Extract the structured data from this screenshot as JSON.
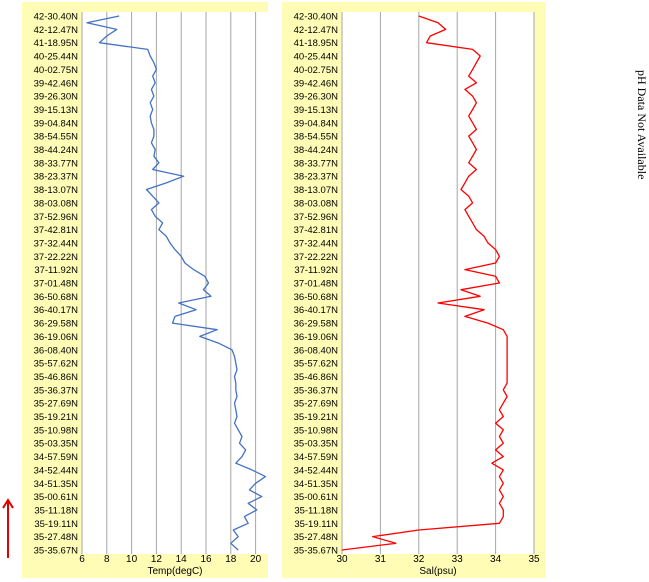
{
  "side_note": "pH Data Not Available",
  "chart_data": [
    {
      "type": "line",
      "xlabel": "Temp(degC)",
      "ylabel": "",
      "xlim": [
        6,
        21
      ],
      "xticks": [
        6,
        8,
        10,
        12,
        14,
        16,
        18,
        20
      ],
      "grid": true,
      "line_color": "#4472c4",
      "background": "#fffdb5",
      "categories": [
        "42-30.40N",
        "42-12.47N",
        "41-18.95N",
        "40-25.44N",
        "40-02.75N",
        "39-42.46N",
        "39-26.30N",
        "39-15.13N",
        "39-04.84N",
        "38-54.55N",
        "38-44.24N",
        "38-33.77N",
        "38-23.37N",
        "38-13.07N",
        "38-03.08N",
        "37-52.96N",
        "37-42.81N",
        "37-32.44N",
        "37-22.22N",
        "37-11.92N",
        "37-01.48N",
        "36-50.68N",
        "36-40.17N",
        "36-29.58N",
        "36-19.06N",
        "36-08.40N",
        "35-57.62N",
        "35-46.86N",
        "35-36.37N",
        "35-27.69N",
        "35-19.21N",
        "35-10.98N",
        "35-03.35N",
        "34-57.59N",
        "34-52.44N",
        "34-51.35N",
        "35-00.61N",
        "35-11.18N",
        "35-19.11N",
        "35-27.48N",
        "35-35.67N"
      ],
      "series": [
        {
          "y": [
            0,
            0.5,
            1,
            1.5,
            2,
            2.5,
            3,
            3.5,
            4,
            4.5,
            5,
            5.5,
            6,
            6.5,
            7,
            7.5,
            8,
            8.5,
            9,
            9.5,
            10,
            10.5,
            11,
            11.5,
            12,
            12.5,
            13,
            13.5,
            14,
            14.5,
            15,
            15.5,
            16,
            16.5,
            17,
            17.5,
            18,
            18.5,
            19,
            19.5,
            20,
            20.5,
            21,
            21.5,
            22,
            22.5,
            23,
            23.5,
            24,
            24.5,
            25,
            25.5,
            26,
            26.5,
            27,
            27.5,
            28,
            28.5,
            29,
            29.5,
            30,
            30.5,
            31,
            31.5,
            32,
            32.5,
            33,
            33.5,
            34,
            34.5,
            35,
            35.5,
            36,
            36.5,
            37,
            37.5,
            38,
            38.5,
            39,
            39.5,
            40
          ],
          "x": [
            9.0,
            6.4,
            8.8,
            8.0,
            7.4,
            11.3,
            11.5,
            11.8,
            12.0,
            11.7,
            11.9,
            11.6,
            11.8,
            11.5,
            11.7,
            11.5,
            11.6,
            11.8,
            11.8,
            11.6,
            11.9,
            11.8,
            12.2,
            11.7,
            14.2,
            12.8,
            11.2,
            11.7,
            12.2,
            11.6,
            11.9,
            12.5,
            12.2,
            12.8,
            13.1,
            13.5,
            14.0,
            14.3,
            15.0,
            15.9,
            16.2,
            15.8,
            16.4,
            13.8,
            15.2,
            13.5,
            13.3,
            16.9,
            15.5,
            17.0,
            18.1,
            18.3,
            18.4,
            18.5,
            18.3,
            18.4,
            18.4,
            18.5,
            18.3,
            18.4,
            18.5,
            18.3,
            18.6,
            18.9,
            18.7,
            19.2,
            18.9,
            18.4,
            19.7,
            20.8,
            20.0,
            19.5,
            20.5,
            19.4,
            20.1,
            19.1,
            19.4,
            18.2,
            18.6,
            18.0,
            18.6
          ]
        }
      ]
    },
    {
      "type": "line",
      "xlabel": "Sal(psu)",
      "ylabel": "",
      "xlim": [
        30,
        35
      ],
      "xticks": [
        30,
        31,
        32,
        33,
        34,
        35
      ],
      "grid": true,
      "line_color": "#ff0000",
      "background": "#fffdb5",
      "categories": [
        "42-30.40N",
        "42-12.47N",
        "41-18.95N",
        "40-25.44N",
        "40-02.75N",
        "39-42.46N",
        "39-26.30N",
        "39-15.13N",
        "39-04.84N",
        "38-54.55N",
        "38-44.24N",
        "38-33.77N",
        "38-23.37N",
        "38-13.07N",
        "38-03.08N",
        "37-52.96N",
        "37-42.81N",
        "37-32.44N",
        "37-22.22N",
        "37-11.92N",
        "37-01.48N",
        "36-50.68N",
        "36-40.17N",
        "36-29.58N",
        "36-19.06N",
        "36-08.40N",
        "35-57.62N",
        "35-46.86N",
        "35-36.37N",
        "35-27.69N",
        "35-19.21N",
        "35-10.98N",
        "35-03.35N",
        "34-57.59N",
        "34-52.44N",
        "34-51.35N",
        "35-00.61N",
        "35-11.18N",
        "35-19.11N",
        "35-27.48N",
        "35-35.67N"
      ],
      "series": [
        {
          "y": [
            0,
            0.5,
            1,
            1.5,
            2,
            2.5,
            3,
            3.5,
            4,
            4.5,
            5,
            5.5,
            6,
            6.5,
            7,
            7.5,
            8,
            8.5,
            9,
            9.5,
            10,
            10.5,
            11,
            11.5,
            12,
            12.5,
            13,
            13.5,
            14,
            14.5,
            15,
            15.5,
            16,
            16.5,
            17,
            17.5,
            18,
            18.5,
            19,
            19.5,
            20,
            20.5,
            21,
            21.5,
            22,
            22.5,
            23,
            23.5,
            24,
            24.5,
            25,
            25.5,
            26,
            26.5,
            27,
            27.5,
            28,
            28.5,
            29,
            29.5,
            30,
            30.5,
            31,
            31.5,
            32,
            32.5,
            33,
            33.5,
            34,
            34.5,
            35,
            35.5,
            36,
            36.5,
            37,
            37.5,
            38,
            38.5,
            39,
            39.5,
            40
          ],
          "x": [
            32.0,
            32.5,
            32.7,
            32.3,
            32.2,
            33.4,
            33.6,
            33.5,
            33.4,
            33.3,
            33.5,
            33.2,
            33.4,
            33.5,
            33.4,
            33.3,
            33.4,
            33.5,
            33.3,
            33.4,
            33.5,
            33.4,
            33.3,
            33.5,
            33.3,
            33.2,
            33.1,
            33.3,
            33.4,
            33.2,
            33.3,
            33.4,
            33.5,
            33.7,
            33.8,
            34.0,
            34.1,
            34.0,
            33.2,
            34.0,
            34.1,
            33.1,
            33.6,
            32.5,
            33.7,
            33.2,
            33.8,
            34.2,
            34.3,
            34.3,
            34.3,
            34.3,
            34.3,
            34.3,
            34.3,
            34.3,
            34.2,
            34.3,
            34.2,
            34.1,
            34.2,
            34.0,
            34.2,
            34.1,
            34.2,
            34.0,
            34.2,
            33.9,
            34.2,
            34.1,
            34.2,
            34.1,
            34.2,
            34.1,
            34.2,
            34.2,
            34.1,
            32.0,
            30.8,
            31.4,
            30.0
          ]
        }
      ]
    }
  ]
}
